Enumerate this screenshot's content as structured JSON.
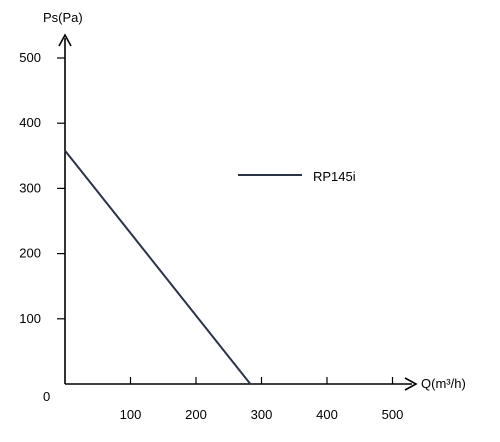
{
  "chart_data": {
    "type": "line",
    "title": "",
    "xlabel": "Q(m³/h)",
    "ylabel": "Ps(Pa)",
    "xlim": [
      0,
      500
    ],
    "ylim": [
      0,
      500
    ],
    "x_ticks": [
      100,
      200,
      300,
      400,
      500
    ],
    "y_ticks": [
      100,
      200,
      300,
      400,
      500
    ],
    "x_tick_labels": [
      "100",
      "200",
      "300",
      "400",
      "500"
    ],
    "y_tick_labels": [
      "100",
      "200",
      "300",
      "400",
      "500"
    ],
    "origin_label": "0",
    "grid": false,
    "legend_position": "top-right",
    "series": [
      {
        "name": "RP145i",
        "color": "#2a3347",
        "x": [
          0,
          283
        ],
        "y": [
          358,
          0
        ]
      }
    ]
  }
}
